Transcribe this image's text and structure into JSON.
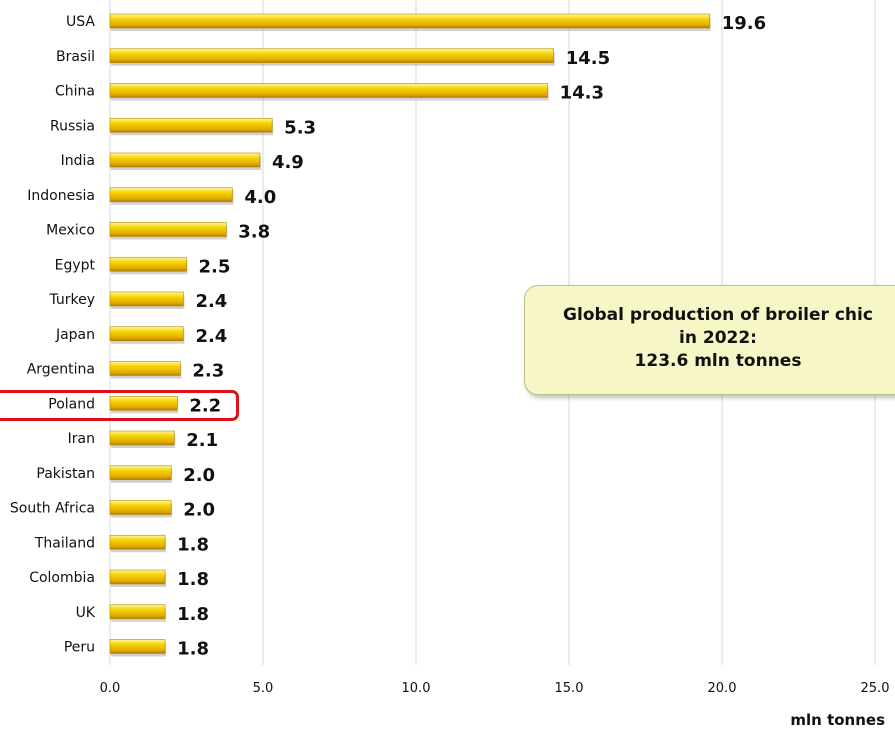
{
  "chart_data": {
    "type": "bar",
    "orientation": "horizontal",
    "categories": [
      "USA",
      "Brasil",
      "China",
      "Russia",
      "India",
      "Indonesia",
      "Mexico",
      "Egypt",
      "Turkey",
      "Japan",
      "Argentina",
      "Poland",
      "Iran",
      "Pakistan",
      "South Africa",
      "Thailand",
      "Colombia",
      "UK",
      "Peru"
    ],
    "values": [
      19.6,
      14.5,
      14.3,
      5.3,
      4.9,
      4.0,
      3.8,
      2.5,
      2.4,
      2.4,
      2.3,
      2.2,
      2.1,
      2.0,
      2.0,
      1.8,
      1.8,
      1.8,
      1.8
    ],
    "value_labels": [
      "19.6",
      "14.5",
      "14.3",
      "5.3",
      "4.9",
      "4.0",
      "3.8",
      "2.5",
      "2.4",
      "2.4",
      "2.3",
      "2.2",
      "2.1",
      "2.0",
      "2.0",
      "1.8",
      "1.8",
      "1.8",
      "1.8"
    ],
    "xlabel": "mln tonnes",
    "xlim": [
      0,
      25
    ],
    "xticks": [
      "0.0",
      "5.0",
      "10.0",
      "15.0",
      "20.0",
      "25.0"
    ],
    "grid": "vertical",
    "highlighted_category": "Poland",
    "bar_color": "#f5c800",
    "highlight_color": "#e0111b",
    "annotation": {
      "lines": [
        "Global production of broiler chic",
        "in 2022:",
        "123.6 mln tonnes"
      ]
    }
  }
}
